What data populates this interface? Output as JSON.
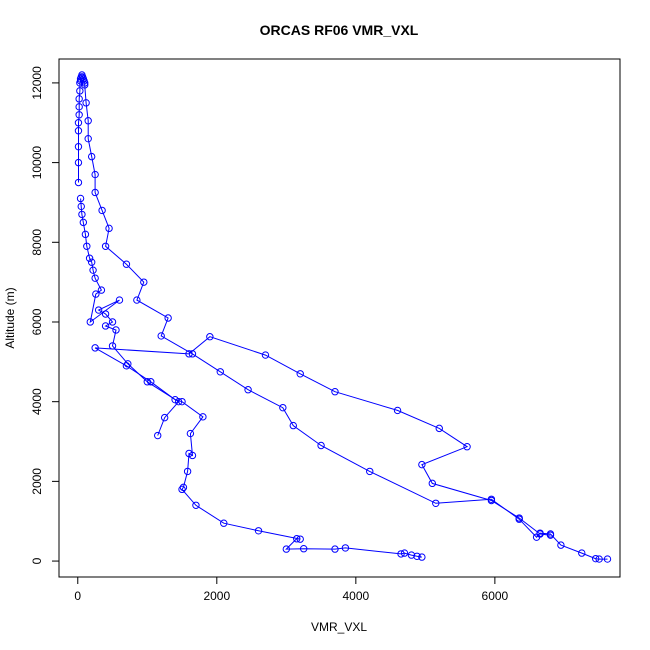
{
  "chart_data": {
    "type": "line",
    "title": "ORCAS RF06 VMR_VXL",
    "xlabel": "VMR_VXL",
    "ylabel": "Altitude (m)",
    "xlim": [
      -270,
      7800
    ],
    "ylim": [
      -400,
      12600
    ],
    "xticks": [
      0,
      2000,
      4000,
      6000
    ],
    "yticks": [
      0,
      2000,
      4000,
      6000,
      8000,
      10000,
      12000
    ],
    "xtick_labels": [
      "0",
      "2000",
      "4000",
      "6000"
    ],
    "ytick_labels": [
      "0",
      "2000",
      "4000",
      "6000",
      "8000",
      "10000",
      "12000"
    ],
    "grid": false,
    "legend": "none",
    "series_color": "#0000ff",
    "markers": "open-circle",
    "series": [
      {
        "x": [
          7620,
          7500,
          7450,
          7250,
          6950,
          6800,
          6650,
          6600,
          6350,
          5950,
          5150,
          4200,
          3500,
          3100,
          2950,
          2450,
          2050,
          1650,
          1200,
          1300,
          850,
          950,
          700,
          400,
          450,
          350,
          250,
          250,
          200,
          150,
          150,
          120,
          100,
          100,
          90,
          80,
          70,
          60,
          50,
          40,
          40,
          30,
          30,
          20,
          20,
          20,
          10,
          10,
          10,
          10,
          10
        ],
        "y": [
          50,
          50,
          60,
          200,
          400,
          680,
          700,
          600,
          1050,
          1550,
          1450,
          2250,
          2900,
          3400,
          3850,
          4300,
          4750,
          5200,
          5650,
          6100,
          6550,
          7000,
          7450,
          7900,
          8350,
          8800,
          9250,
          9700,
          10150,
          10600,
          11050,
          11500,
          11950,
          12000,
          12050,
          12100,
          12150,
          12200,
          12150,
          12100,
          12050,
          12000,
          11800,
          11600,
          11400,
          11200,
          11000,
          10800,
          10400,
          10000,
          9500
        ]
      },
      {
        "x": [
          4950,
          4880,
          4800,
          4700,
          4650,
          3850,
          3700,
          3250,
          3000,
          3150,
          3200,
          2600,
          2100,
          1700,
          1500,
          1520,
          1580,
          1600,
          1650,
          1620,
          1800,
          1500,
          1400,
          1050,
          700,
          250,
          1600,
          1900,
          2700,
          3200,
          3700,
          4600,
          5200,
          5600,
          4950,
          5100,
          5950,
          6350,
          6650,
          6800
        ],
        "y": [
          100,
          120,
          150,
          200,
          180,
          330,
          300,
          310,
          300,
          560,
          550,
          760,
          950,
          1400,
          1800,
          1850,
          2250,
          2700,
          2650,
          3200,
          3620,
          4000,
          4050,
          4500,
          4900,
          5350,
          5200,
          5630,
          5170,
          4700,
          4250,
          3780,
          3330,
          2870,
          2420,
          1950,
          1520,
          1080,
          680,
          650
        ]
      },
      {
        "x": [
          1150,
          1250,
          1450,
          1000,
          720,
          500,
          550,
          400,
          500,
          400,
          300,
          600,
          180,
          260,
          340,
          250,
          220,
          200,
          170,
          130,
          110,
          80,
          60,
          50,
          40
        ],
        "y": [
          3150,
          3600,
          4000,
          4500,
          4950,
          5400,
          5800,
          5900,
          6000,
          6200,
          6300,
          6550,
          6000,
          6700,
          6800,
          7100,
          7300,
          7500,
          7600,
          7900,
          8200,
          8500,
          8700,
          8900,
          9100
        ]
      }
    ]
  }
}
